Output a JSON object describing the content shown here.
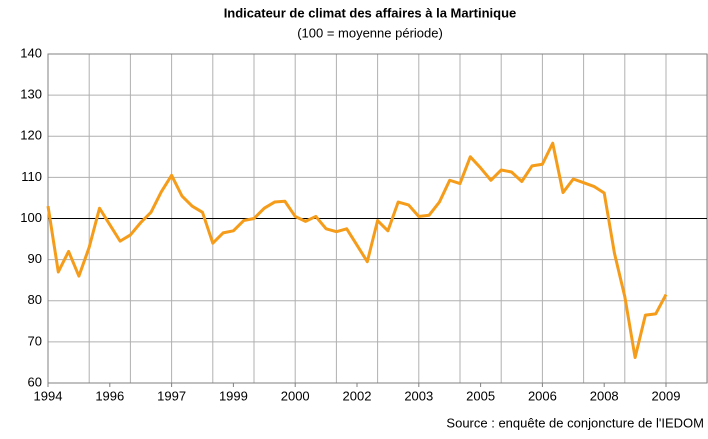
{
  "chart_data": {
    "type": "line",
    "title": "Indicateur de climat des affaires à la Martinique",
    "subtitle": "(100 = moyenne période)",
    "source": "Source : enquête de conjoncture de l'IEDOM",
    "categories": [
      "1994",
      null,
      null,
      null,
      null,
      null,
      "1996",
      null,
      null,
      null,
      null,
      null,
      "1997",
      null,
      null,
      null,
      null,
      null,
      "1999",
      null,
      null,
      null,
      null,
      null,
      "2000",
      null,
      null,
      null,
      null,
      null,
      "2002",
      null,
      null,
      null,
      null,
      null,
      "2003",
      null,
      null,
      null,
      null,
      null,
      "2005",
      null,
      null,
      null,
      null,
      null,
      "2006",
      null,
      null,
      null,
      null,
      null,
      "2008",
      null,
      null,
      null,
      null,
      null,
      "2009"
    ],
    "series": [
      {
        "color": "#f59c1a",
        "values": [
          103,
          87,
          92,
          86,
          93,
          102.5,
          98.5,
          94.5,
          96,
          99,
          101.5,
          106.5,
          110.5,
          105.5,
          103,
          101.5,
          94,
          96.5,
          97,
          99.5,
          100,
          102.5,
          104,
          104.2,
          100.5,
          99.3,
          100.5,
          97.5,
          96.8,
          97.5,
          93.5,
          89.5,
          99.5,
          97,
          104,
          103.3,
          100.5,
          100.8,
          104,
          109.3,
          108.5,
          115,
          112.3,
          109.3,
          111.8,
          111.3,
          109,
          112.8,
          113.2,
          118.3,
          106.3,
          109.6,
          108.7,
          107.8,
          106.2,
          91.5,
          81,
          66.2,
          76.5,
          76.8,
          81.5
        ]
      }
    ],
    "reference": 100,
    "ylim": [
      60,
      140
    ],
    "yticks": [
      60,
      70,
      80,
      90,
      100,
      110,
      120,
      130,
      140
    ],
    "grid": true
  }
}
